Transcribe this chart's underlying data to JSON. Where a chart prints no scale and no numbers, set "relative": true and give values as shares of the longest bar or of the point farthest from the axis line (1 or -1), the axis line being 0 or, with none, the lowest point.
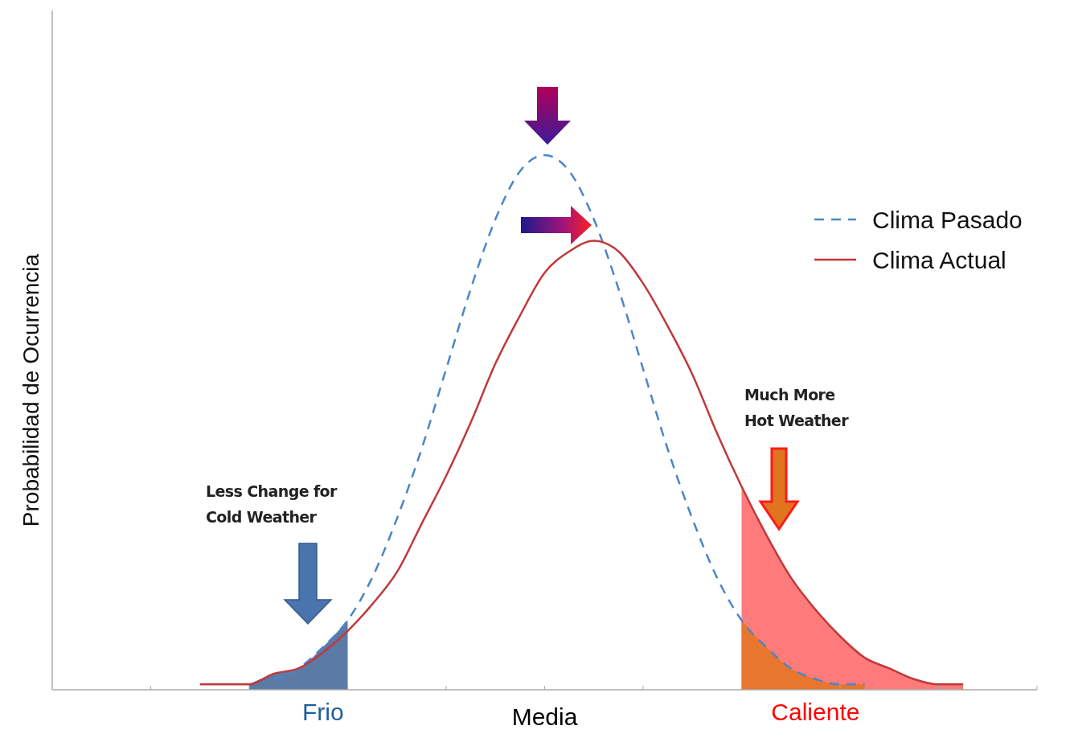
{
  "chart_data": {
    "type": "line",
    "relative": true,
    "ylabel": "Probabilidad de Ocurrencia",
    "legend": "top right",
    "categories": [
      null,
      null,
      null,
      null,
      null,
      null,
      null,
      null,
      null,
      null,
      null,
      "Frio",
      null,
      null,
      null,
      null,
      null,
      null,
      null,
      null,
      "Media",
      null,
      null,
      null,
      null,
      null,
      null,
      null,
      null,
      null,
      null,
      "Caliente",
      null,
      null,
      null,
      null,
      null,
      null,
      null,
      null,
      null
    ],
    "series": [
      {
        "type": "area",
        "color": "#5b7aa6",
        "values": [
          null,
          null,
          null,
          null,
          null,
          null,
          null,
          null,
          0.01,
          0.03,
          0.04,
          0.08,
          0.13,
          null,
          null,
          null,
          null,
          null,
          null,
          null,
          null,
          null,
          null,
          null,
          null,
          null,
          null,
          null,
          null,
          null,
          null,
          null,
          null,
          null,
          null,
          null,
          null,
          null,
          null,
          null,
          null
        ]
      },
      {
        "type": "area",
        "color": "#ff7b7b",
        "values": [
          null,
          null,
          null,
          null,
          null,
          null,
          null,
          null,
          null,
          null,
          null,
          null,
          null,
          null,
          null,
          null,
          null,
          null,
          null,
          null,
          null,
          null,
          null,
          null,
          null,
          null,
          null,
          null,
          0.38,
          0.29,
          0.21,
          0.15,
          0.1,
          0.06,
          0.04,
          0.02,
          0.01,
          0.01,
          null,
          null,
          null
        ]
      },
      {
        "type": "area",
        "color": "#e8762f",
        "values": [
          null,
          null,
          null,
          null,
          null,
          null,
          null,
          null,
          null,
          null,
          null,
          null,
          null,
          null,
          null,
          null,
          null,
          null,
          null,
          null,
          null,
          null,
          null,
          null,
          null,
          null,
          null,
          null,
          0.13,
          0.08,
          0.04,
          0.02,
          0.01,
          0.01,
          null,
          null,
          null,
          null,
          null,
          null,
          null
        ]
      },
      {
        "name": "Clima Pasado",
        "color": "#4a86c8",
        "line_style": "dashed",
        "values": [
          null,
          null,
          null,
          null,
          null,
          null,
          null,
          null,
          null,
          0.02,
          0.04,
          0.08,
          0.13,
          0.21,
          0.32,
          0.45,
          0.6,
          0.75,
          0.88,
          0.97,
          1,
          0.97,
          0.88,
          0.75,
          0.6,
          0.45,
          0.32,
          0.21,
          0.13,
          0.08,
          0.04,
          0.02,
          0.01,
          0.01,
          null,
          null,
          null,
          null,
          null,
          null,
          null
        ]
      },
      {
        "name": "Clima Actual",
        "color": "#c0393b",
        "line_style": "solid",
        "values": [
          null,
          null,
          null,
          null,
          null,
          null,
          0.01,
          0.01,
          0.01,
          0.03,
          0.04,
          0.07,
          0.11,
          0.16,
          0.22,
          0.31,
          0.4,
          0.5,
          0.61,
          0.7,
          0.78,
          0.82,
          0.84,
          0.82,
          0.76,
          0.68,
          0.59,
          0.48,
          0.38,
          0.29,
          0.21,
          0.15,
          0.1,
          0.06,
          0.04,
          0.02,
          0.01,
          0.01,
          null,
          null,
          null
        ]
      }
    ],
    "annotations": [
      "Less Change for Cold Weather",
      "Much More Hot Weather"
    ]
  }
}
